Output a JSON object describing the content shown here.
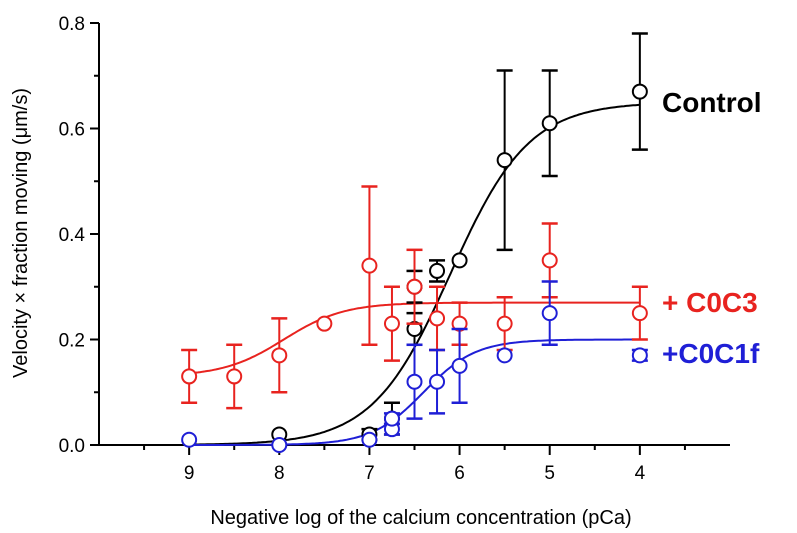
{
  "chart_data": {
    "type": "scatter",
    "xlabel": "Negative log of the calcium concentration (pCa)",
    "ylabel": "Velocity × fraction moving (μm/s)",
    "xlim": [
      10,
      3
    ],
    "ylim": [
      0,
      0.8
    ],
    "x_ticks": [
      9,
      8,
      7,
      6,
      5,
      4
    ],
    "x_tick_labels": [
      "9",
      "8",
      "7",
      "6",
      "5",
      "4"
    ],
    "y_ticks": [
      0,
      0.2,
      0.4,
      0.6,
      0.8
    ],
    "y_tick_labels": [
      "0.0",
      "0.2",
      "0.4",
      "0.6",
      "0.8"
    ],
    "series": [
      {
        "name": "Control",
        "color": "#000000",
        "points": [
          {
            "x": 8.0,
            "y": 0.02,
            "err": 0
          },
          {
            "x": 7.0,
            "y": 0.02,
            "err": 0.01
          },
          {
            "x": 6.75,
            "y": 0.05,
            "err": 0.03
          },
          {
            "x": 6.5,
            "y": 0.22,
            "err": 0.03
          },
          {
            "x": 6.5,
            "y": 0.3,
            "err": 0.03
          },
          {
            "x": 6.25,
            "y": 0.33,
            "err": 0.02
          },
          {
            "x": 6.0,
            "y": 0.35,
            "err": 0
          },
          {
            "x": 5.5,
            "y": 0.54,
            "err": 0.17
          },
          {
            "x": 5.0,
            "y": 0.61,
            "err": 0.1
          },
          {
            "x": 4.0,
            "y": 0.67,
            "err": 0.11
          }
        ],
        "fit": {
          "bottom": 0.0,
          "top": 0.65,
          "pCa50": 6.1,
          "hill": 1.0
        }
      },
      {
        "name": "+ C0C3",
        "color": "#e8231f",
        "points": [
          {
            "x": 9.0,
            "y": 0.13,
            "err": 0.05
          },
          {
            "x": 8.5,
            "y": 0.13,
            "err": 0.06
          },
          {
            "x": 8.0,
            "y": 0.17,
            "err": 0.07
          },
          {
            "x": 7.5,
            "y": 0.23,
            "err": 0
          },
          {
            "x": 7.0,
            "y": 0.34,
            "err": 0.15
          },
          {
            "x": 6.75,
            "y": 0.23,
            "err": 0.07
          },
          {
            "x": 6.5,
            "y": 0.3,
            "err": 0.07
          },
          {
            "x": 6.25,
            "y": 0.24,
            "err": 0.06
          },
          {
            "x": 6.0,
            "y": 0.23,
            "err": 0.04
          },
          {
            "x": 5.5,
            "y": 0.23,
            "err": 0.05
          },
          {
            "x": 5.0,
            "y": 0.35,
            "err": 0.07
          },
          {
            "x": 4.0,
            "y": 0.25,
            "err": 0.05
          }
        ],
        "fit": {
          "bottom": 0.13,
          "top": 0.27,
          "pCa50": 7.95,
          "hill": 1.3
        }
      },
      {
        "name": "+C0C1f",
        "color": "#1f1fd6",
        "points": [
          {
            "x": 9.0,
            "y": 0.01,
            "err": 0
          },
          {
            "x": 8.0,
            "y": 0.0,
            "err": 0
          },
          {
            "x": 7.0,
            "y": 0.01,
            "err": 0
          },
          {
            "x": 6.75,
            "y": 0.03,
            "err": 0.01
          },
          {
            "x": 6.75,
            "y": 0.05,
            "err": 0.01
          },
          {
            "x": 6.5,
            "y": 0.12,
            "err": 0.07
          },
          {
            "x": 6.25,
            "y": 0.12,
            "err": 0.06
          },
          {
            "x": 6.0,
            "y": 0.15,
            "err": 0.07
          },
          {
            "x": 5.5,
            "y": 0.17,
            "err": 0
          },
          {
            "x": 5.0,
            "y": 0.25,
            "err": 0.06
          },
          {
            "x": 4.0,
            "y": 0.17,
            "err": 0.01
          }
        ],
        "fit": {
          "bottom": 0.0,
          "top": 0.2,
          "pCa50": 6.4,
          "hill": 1.5
        }
      }
    ]
  }
}
